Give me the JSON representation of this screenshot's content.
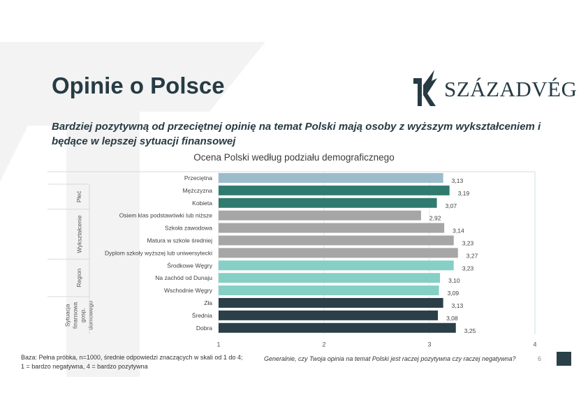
{
  "page": {
    "title": "Opinie o Polsce",
    "logo_text": "SZÁZADVÉG",
    "subtitle": "Bardziej pozytywną od przeciętnej opinię na temat Polski mają osoby z wyższym wykształceniem i będące w lepszej sytuacji finansowej",
    "footnote": "Baza: Pełna próbka, n=1000, średnie odpowiedzi znaczących w skali od 1 do 4;\n1 = bardzo negatywna, 4 = bardzo pozytywna",
    "question": "Generalnie, czy Twoja opinia na temat Polski jest raczej pozytywna czy raczej negatywna?",
    "page_number": "6"
  },
  "colors": {
    "average": "#9dbccb",
    "gender": "#2f7b70",
    "education": "#a6a6a6",
    "region": "#86cfc5",
    "finance": "#2b3f48",
    "brand_dark": "#263b44"
  },
  "chart_data": {
    "type": "bar",
    "orientation": "horizontal",
    "title": "Ocena Polski według podziału demograficznego",
    "xlim": [
      1,
      4
    ],
    "xticks": [
      "1",
      "2",
      "3",
      "4"
    ],
    "categories": [
      "Przeciętna",
      "Mężczyzna",
      "Kobieta",
      "Osiem klas podstawówki lub niższe",
      "Szkoła zawodowa",
      "Matura w szkole średniej",
      "Dyplom szkoły wyższej lub uniwersytecki",
      "Środkowe Węgry",
      "Na zachód od Dunaju",
      "Wschodnie Węgry",
      "Zła",
      "Średnia",
      "Dobra"
    ],
    "values": [
      3.13,
      3.19,
      3.07,
      2.92,
      3.14,
      3.23,
      3.27,
      3.23,
      3.1,
      3.09,
      3.13,
      3.08,
      3.25
    ],
    "value_labels": [
      "3,13",
      "3,19",
      "3,07",
      "2,92",
      "3,14",
      "3,23",
      "3,27",
      "3,23",
      "3,10",
      "3,09",
      "3,13",
      "3,08",
      "3,25"
    ],
    "color_keys": [
      "average",
      "gender",
      "gender",
      "education",
      "education",
      "education",
      "education",
      "region",
      "region",
      "region",
      "finance",
      "finance",
      "finance"
    ],
    "groups": [
      {
        "label": "",
        "start": 0,
        "count": 1
      },
      {
        "label": "Płeć",
        "start": 1,
        "count": 2
      },
      {
        "label": "Wykształcenie",
        "start": 3,
        "count": 4
      },
      {
        "label": "Region",
        "start": 7,
        "count": 3
      },
      {
        "label": "Sytuacja finansowa gosp. domowego",
        "start": 10,
        "count": 3
      }
    ],
    "gridlines": true
  }
}
